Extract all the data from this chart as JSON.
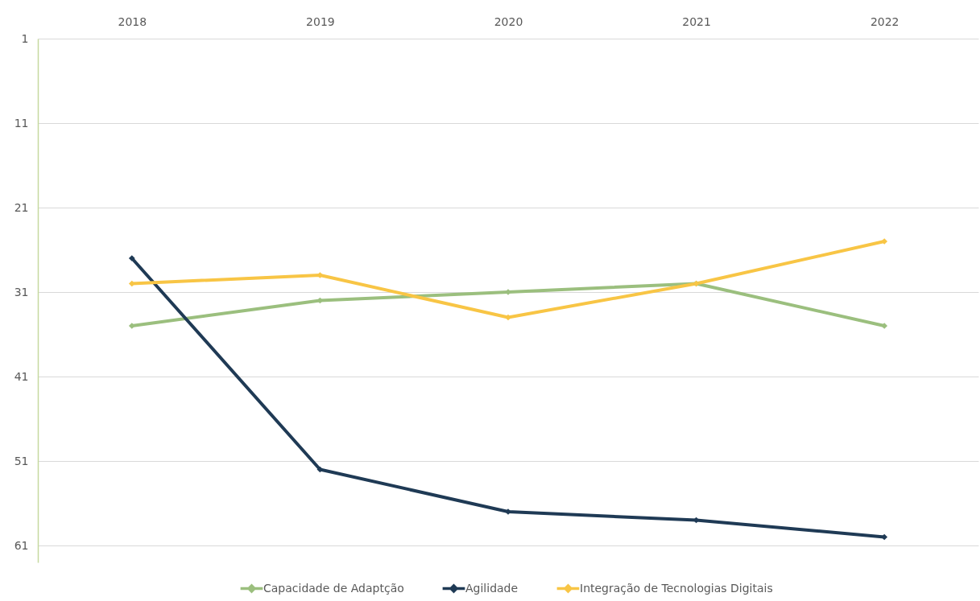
{
  "chart_data": {
    "type": "line",
    "categories": [
      "2018",
      "2019",
      "2020",
      "2021",
      "2022"
    ],
    "series": [
      {
        "name": "Capacidade de Adaptção",
        "color": "#9bbf7e",
        "values": [
          35,
          32,
          31,
          30,
          35
        ]
      },
      {
        "name": "Agilidade",
        "color": "#1f3a55",
        "values": [
          27,
          52,
          57,
          58,
          60
        ]
      },
      {
        "name": "Integração de Tecnologias Digitais",
        "color": "#f8c545",
        "values": [
          30,
          29,
          34,
          30,
          25
        ]
      }
    ],
    "ylim": [
      63,
      1
    ],
    "yticks": [
      1,
      11,
      21,
      31,
      41,
      51,
      61
    ],
    "grid": "y",
    "legend": "bottom",
    "marker": "diamond",
    "line_style": "solid"
  }
}
